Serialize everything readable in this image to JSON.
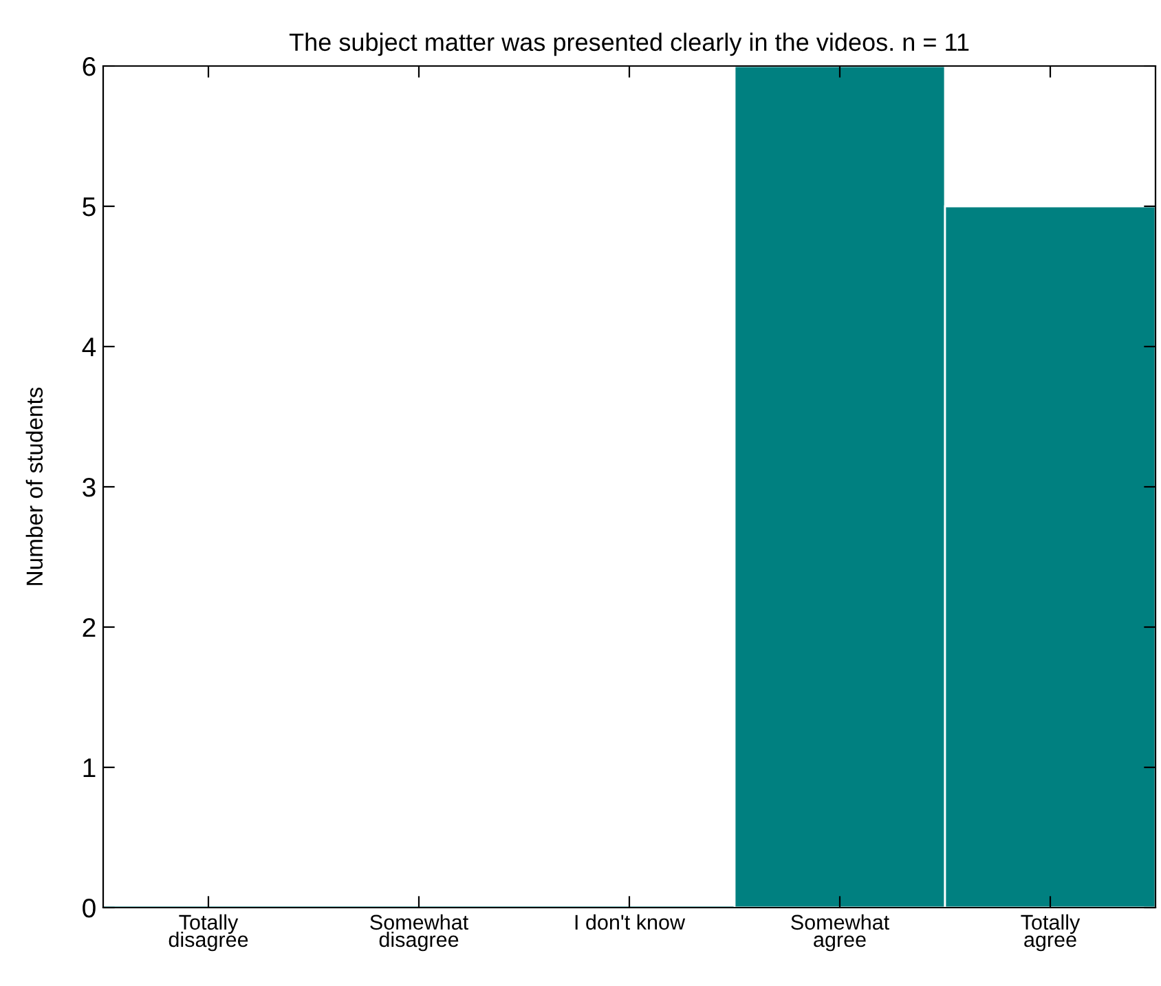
{
  "chart_data": {
    "type": "bar",
    "title": "The subject matter was presented clearly in the videos. n = 11",
    "ylabel": "Number of students",
    "categories": [
      "Totally\ndisagree",
      "Somewhat\ndisagree",
      "I don't know",
      "Somewhat\nagree",
      "Totally\nagree"
    ],
    "values": [
      0,
      0,
      0,
      6,
      5
    ],
    "color": "#008080",
    "ylim": [
      0,
      6
    ],
    "yticks": [
      0,
      1,
      2,
      3,
      4,
      5,
      6
    ],
    "grid": false
  }
}
